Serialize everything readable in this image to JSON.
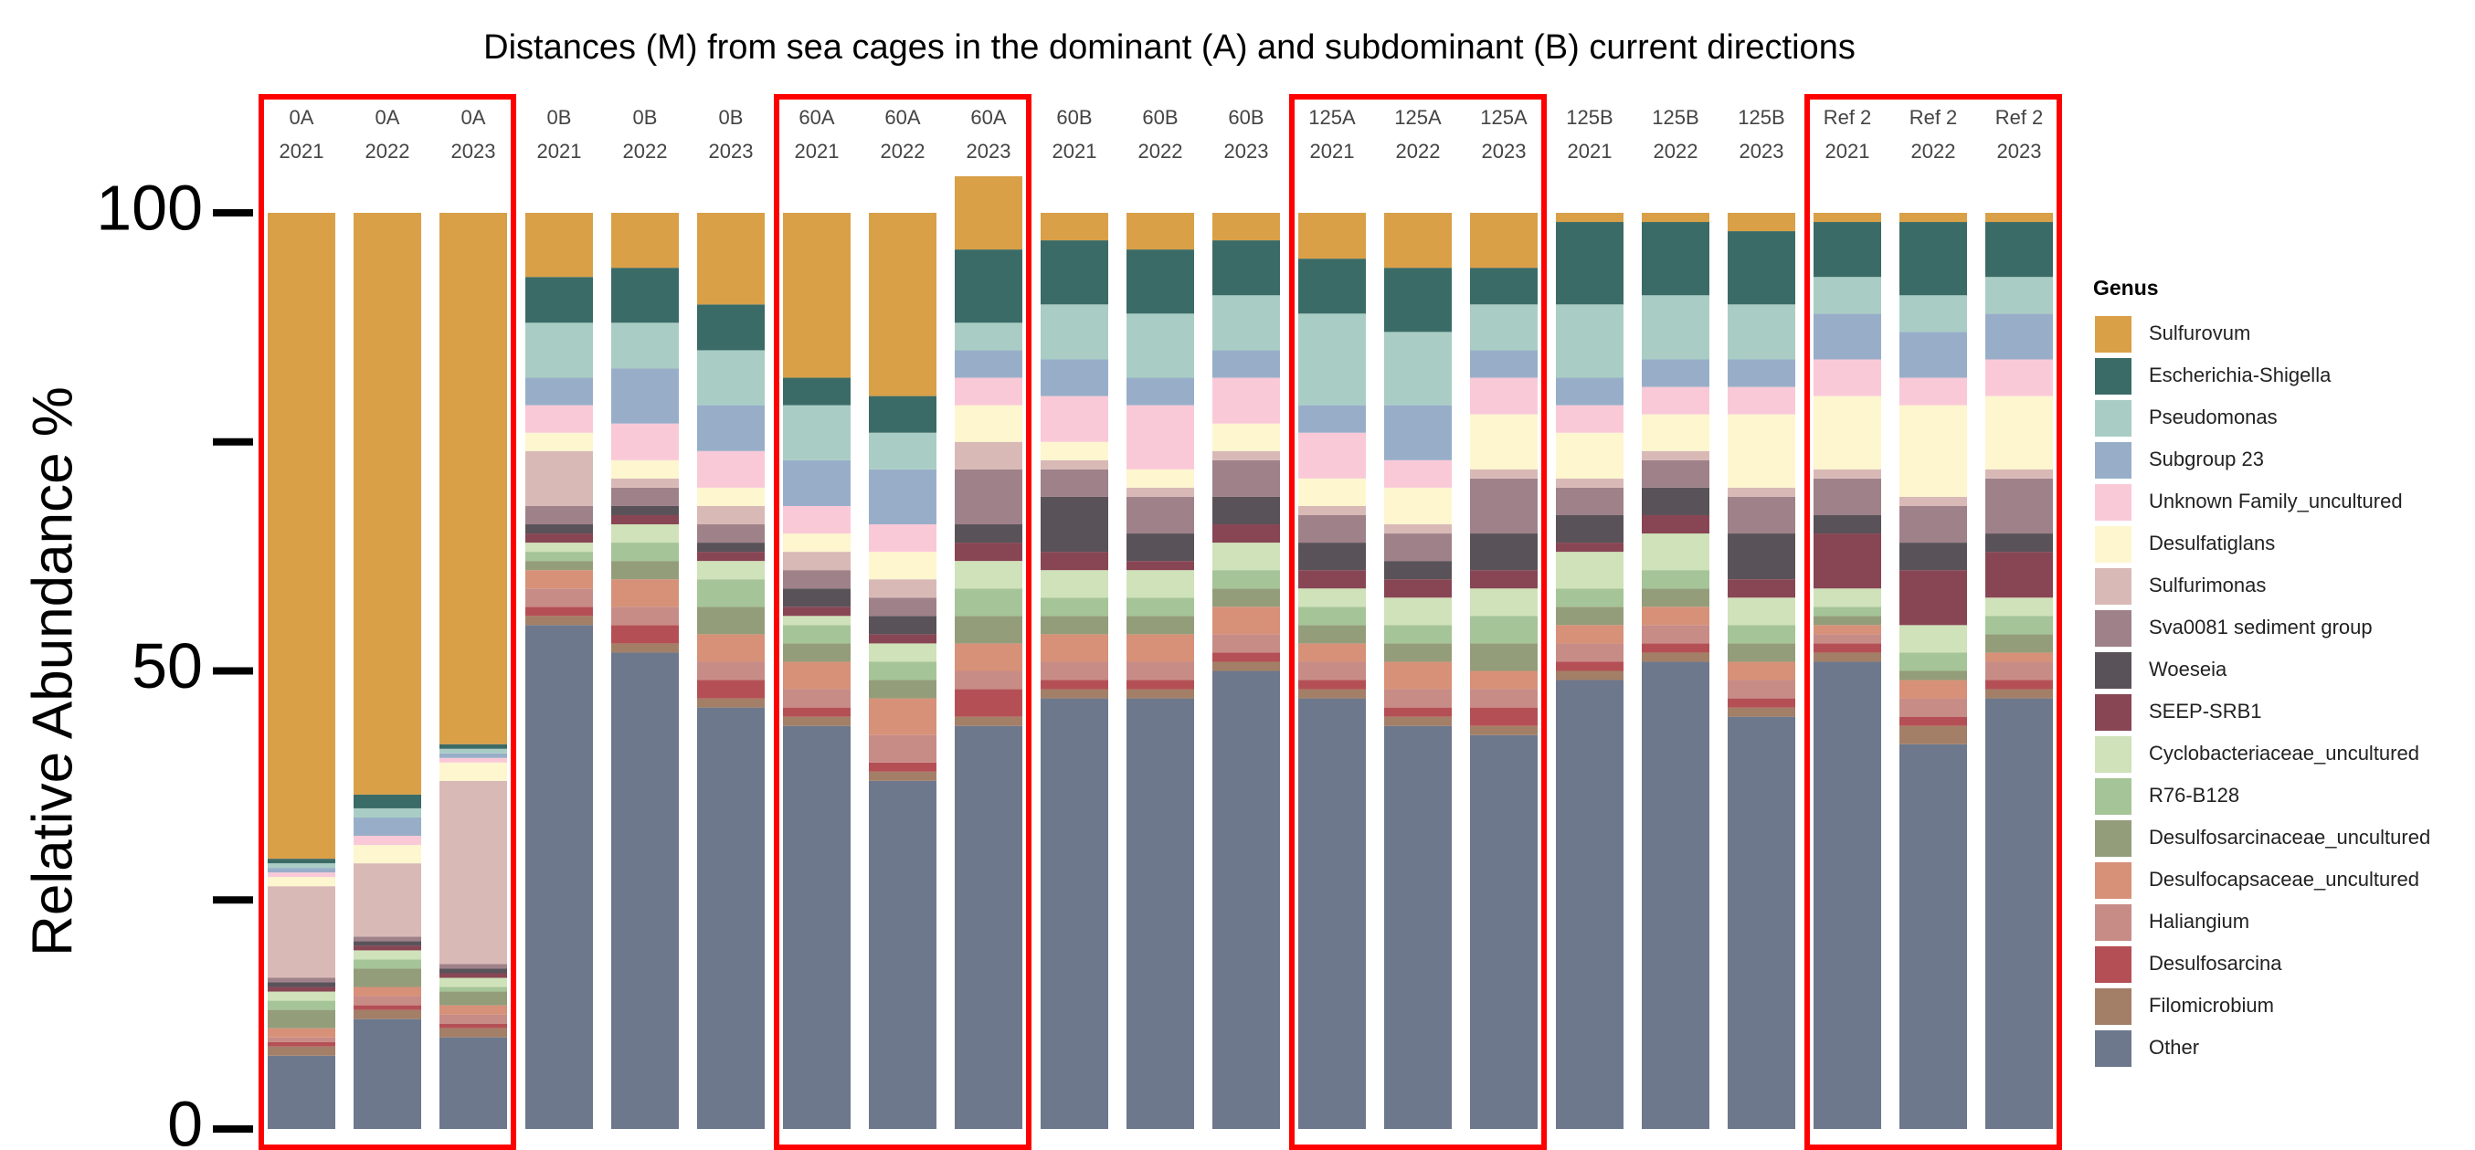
{
  "chart_data": {
    "type": "stacked_bar",
    "title": "Distances (M) from sea cages in the dominant (A) and subdominant (B) current directions",
    "y_label": "Relative Abundance %",
    "legend_title": "Genus",
    "ylim": [
      0,
      100
    ],
    "yticks": [
      0,
      50,
      100
    ],
    "minor_yticks": [
      25,
      75
    ],
    "categories": [
      [
        "0A",
        "2021"
      ],
      [
        "0A",
        "2022"
      ],
      [
        "0A",
        "2023"
      ],
      [
        "0B",
        "2021"
      ],
      [
        "0B",
        "2022"
      ],
      [
        "0B",
        "2023"
      ],
      [
        "60A",
        "2021"
      ],
      [
        "60A",
        "2022"
      ],
      [
        "60A",
        "2023"
      ],
      [
        "60B",
        "2021"
      ],
      [
        "60B",
        "2022"
      ],
      [
        "60B",
        "2023"
      ],
      [
        "125A",
        "2021"
      ],
      [
        "125A",
        "2022"
      ],
      [
        "125A",
        "2023"
      ],
      [
        "125B",
        "2021"
      ],
      [
        "125B",
        "2022"
      ],
      [
        "125B",
        "2023"
      ],
      [
        "Ref 2",
        "2021"
      ],
      [
        "Ref 2",
        "2022"
      ],
      [
        "Ref 2",
        "2023"
      ]
    ],
    "series": [
      {
        "name": "Sulfurovum",
        "color": "#d9a048",
        "values": [
          70.5,
          63.5,
          58,
          7,
          6,
          10,
          18,
          20,
          8,
          3,
          4,
          3,
          5,
          6,
          6,
          1,
          1,
          2,
          1,
          1,
          1
        ]
      },
      {
        "name": "Escherichia-Shigella",
        "color": "#3b6b66",
        "values": [
          0.5,
          1.5,
          0.5,
          5,
          6,
          5,
          3,
          4,
          8,
          7,
          7,
          6,
          6,
          7,
          4,
          9,
          8,
          8,
          6,
          8,
          6
        ]
      },
      {
        "name": "Pseudomonas",
        "color": "#a9cdc5",
        "values": [
          0.5,
          1,
          0.5,
          6,
          5,
          6,
          6,
          4,
          3,
          6,
          7,
          6,
          10,
          8,
          5,
          8,
          7,
          6,
          4,
          4,
          4
        ]
      },
      {
        "name": "Subgroup 23",
        "color": "#98aec8",
        "values": [
          0.5,
          2,
          0.5,
          3,
          6,
          5,
          5,
          6,
          3,
          4,
          3,
          3,
          3,
          6,
          3,
          3,
          3,
          3,
          5,
          5,
          5
        ]
      },
      {
        "name": "Unknown Family_uncultured",
        "color": "#fac9d8",
        "values": [
          0.5,
          1,
          0.5,
          3,
          4,
          4,
          3,
          3,
          3,
          5,
          7,
          5,
          5,
          3,
          4,
          3,
          3,
          3,
          4,
          3,
          4
        ]
      },
      {
        "name": "Desulfatiglans",
        "color": "#fdf6cf",
        "values": [
          1,
          2,
          2,
          2,
          2,
          2,
          2,
          3,
          4,
          2,
          2,
          3,
          3,
          4,
          6,
          5,
          4,
          8,
          8,
          10,
          8
        ]
      },
      {
        "name": "Sulfurimonas",
        "color": "#d8b9b6",
        "values": [
          10,
          8,
          20,
          6,
          1,
          2,
          2,
          2,
          3,
          1,
          1,
          1,
          1,
          1,
          1,
          1,
          1,
          1,
          1,
          1,
          1
        ]
      },
      {
        "name": "Sva0081 sediment group",
        "color": "#9f8189",
        "values": [
          0.5,
          0.5,
          0.5,
          2,
          2,
          2,
          2,
          2,
          6,
          3,
          4,
          4,
          3,
          3,
          6,
          3,
          3,
          4,
          4,
          4,
          6
        ]
      },
      {
        "name": "Woeseia",
        "color": "#5a5259",
        "values": [
          0.5,
          0.5,
          0.5,
          1,
          1,
          1,
          2,
          2,
          2,
          6,
          3,
          3,
          3,
          2,
          4,
          3,
          3,
          5,
          2,
          3,
          2
        ]
      },
      {
        "name": "SEEP-SRB1",
        "color": "#884654",
        "values": [
          0.5,
          0.5,
          0.5,
          1,
          1,
          1,
          1,
          1,
          2,
          2,
          1,
          2,
          2,
          2,
          2,
          1,
          2,
          2,
          6,
          6,
          5
        ]
      },
      {
        "name": "Cyclobacteriaceae_uncultured",
        "color": "#cfe2b9",
        "values": [
          1,
          1,
          1,
          1,
          2,
          2,
          1,
          2,
          3,
          3,
          3,
          3,
          2,
          3,
          3,
          4,
          4,
          3,
          2,
          3,
          2
        ]
      },
      {
        "name": "R76-B128",
        "color": "#a5c497",
        "values": [
          1,
          1,
          0.5,
          1,
          2,
          3,
          2,
          2,
          3,
          2,
          2,
          2,
          2,
          2,
          3,
          2,
          2,
          2,
          1,
          2,
          2
        ]
      },
      {
        "name": "Desulfosarcinaceae_uncultured",
        "color": "#939d7a",
        "values": [
          2,
          2,
          1.5,
          1,
          2,
          3,
          2,
          2,
          3,
          2,
          2,
          2,
          2,
          2,
          3,
          2,
          2,
          2,
          1,
          1,
          2
        ]
      },
      {
        "name": "Desulfocapsaceae_uncultured",
        "color": "#d79178",
        "values": [
          1,
          1,
          1,
          2,
          3,
          3,
          3,
          4,
          3,
          3,
          3,
          3,
          2,
          3,
          2,
          2,
          2,
          2,
          1,
          2,
          1
        ]
      },
      {
        "name": "Haliangium",
        "color": "#c88c87",
        "values": [
          0.5,
          1,
          1,
          2,
          2,
          2,
          2,
          3,
          2,
          2,
          2,
          2,
          2,
          2,
          2,
          2,
          2,
          2,
          1,
          2,
          2
        ]
      },
      {
        "name": "Desulfosarcina",
        "color": "#b45055",
        "values": [
          0.5,
          0.5,
          0.5,
          1,
          2,
          2,
          1,
          1,
          3,
          1,
          1,
          1,
          1,
          1,
          2,
          1,
          1,
          1,
          1,
          1,
          1
        ]
      },
      {
        "name": "Filomicrobium",
        "color": "#a37f67",
        "values": [
          1,
          1,
          1,
          1,
          1,
          1,
          1,
          1,
          1,
          1,
          1,
          1,
          1,
          1,
          1,
          1,
          1,
          1,
          1,
          2,
          1
        ]
      },
      {
        "name": "Other",
        "color": "#6d788c",
        "values": [
          8,
          12,
          10,
          55,
          52,
          46,
          44,
          38,
          44,
          47,
          47,
          50,
          47,
          44,
          43,
          49,
          51,
          45,
          51,
          42,
          47
        ]
      }
    ]
  }
}
